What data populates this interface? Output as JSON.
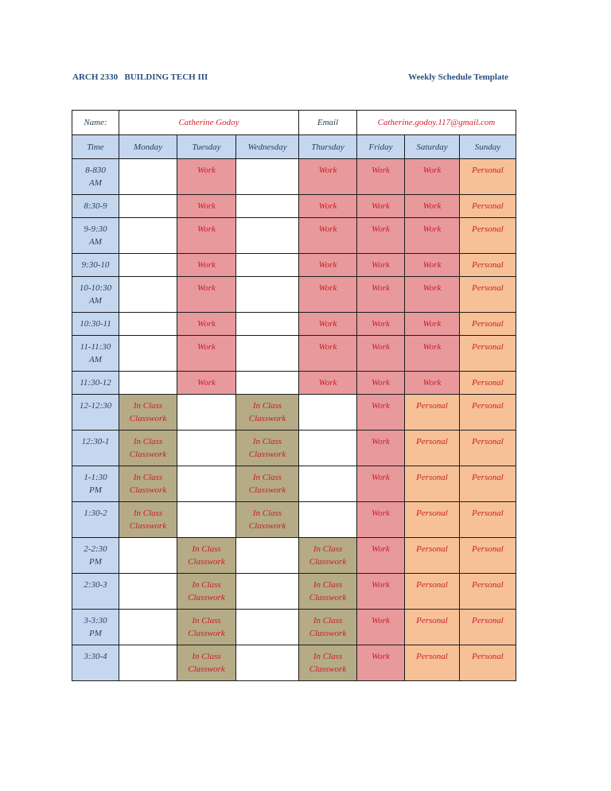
{
  "header": {
    "course": "ARCH 2330   BUILDING TECH III",
    "title": "Weekly Schedule Template"
  },
  "info": {
    "name_label": "Name:",
    "name_value": "Catherine Godoy",
    "email_label": "Email",
    "email_value": "Catherine.godoy.117@gmail.com"
  },
  "columns": [
    "Time",
    "Monday",
    "Tuesday",
    "Wednesday",
    "Thursday",
    "Friday",
    "Saturday",
    "Sunday"
  ],
  "legend_colors": {
    "time": "#c5d7ef",
    "work": "#e8999c",
    "personal": "#f7c198",
    "class": "#b5ab86"
  },
  "rows": [
    {
      "time": "8-830\nAM",
      "cells": [
        "",
        "Work",
        "",
        "Work",
        "Work",
        "Work",
        "Personal"
      ]
    },
    {
      "time": "8:30-9",
      "cells": [
        "",
        "Work",
        "",
        "Work",
        "Work",
        "Work",
        "Personal"
      ]
    },
    {
      "time": "9-9:30\nAM",
      "cells": [
        "",
        "Work",
        "",
        "Work",
        "Work",
        "Work",
        "Personal"
      ]
    },
    {
      "time": "9:30-10",
      "cells": [
        "",
        "Work",
        "",
        "Work",
        "Work",
        "Work",
        "Personal"
      ]
    },
    {
      "time": "10-10:30\nAM",
      "cells": [
        "",
        "Work",
        "",
        "Work",
        "Work",
        "Work",
        "Personal"
      ]
    },
    {
      "time": "10:30-11",
      "cells": [
        "",
        "Work",
        "",
        "Work",
        "Work",
        "Work",
        "Personal"
      ]
    },
    {
      "time": "11-11:30\nAM",
      "cells": [
        "",
        "Work",
        "",
        "Work",
        "Work",
        "Work",
        "Personal"
      ]
    },
    {
      "time": "11:30-12",
      "cells": [
        "",
        "Work",
        "",
        "Work",
        "Work",
        "Work",
        "Personal"
      ]
    },
    {
      "time": "12-12:30",
      "cells": [
        "In Class\nClasswork",
        "",
        "In Class\nClasswork",
        "",
        "Work",
        "Personal",
        "Personal"
      ]
    },
    {
      "time": "12:30-1",
      "cells": [
        "In Class\nClasswork",
        "",
        "In Class\nClasswork",
        "",
        "Work",
        "Personal",
        "Personal"
      ]
    },
    {
      "time": "1-1:30\nPM",
      "cells": [
        "In Class\nClasswork",
        "",
        "In Class\nClasswork",
        "",
        "Work",
        "Personal",
        "Personal"
      ]
    },
    {
      "time": "1:30-2",
      "cells": [
        "In Class\nClasswork",
        "",
        "In Class\nClasswork",
        "",
        "Work",
        "Personal",
        "Personal"
      ]
    },
    {
      "time": "2-2:30\nPM",
      "cells": [
        "",
        "In Class\nClasswork",
        "",
        "In Class\nClasswork",
        "Work",
        "Personal",
        "Personal"
      ]
    },
    {
      "time": "2:30-3",
      "cells": [
        "",
        "In Class\nClasswork",
        "",
        "In Class\nClasswork",
        "Work",
        "Personal",
        "Personal"
      ]
    },
    {
      "time": "3-3:30\nPM",
      "cells": [
        "",
        "In Class\nClasswork",
        "",
        "In Class\nClasswork",
        "Work",
        "Personal",
        "Personal"
      ]
    },
    {
      "time": "3:30-4",
      "cells": [
        "",
        "In Class\nClasswork",
        "",
        "In Class\nClasswork",
        "Work",
        "Personal",
        "Personal"
      ]
    }
  ]
}
